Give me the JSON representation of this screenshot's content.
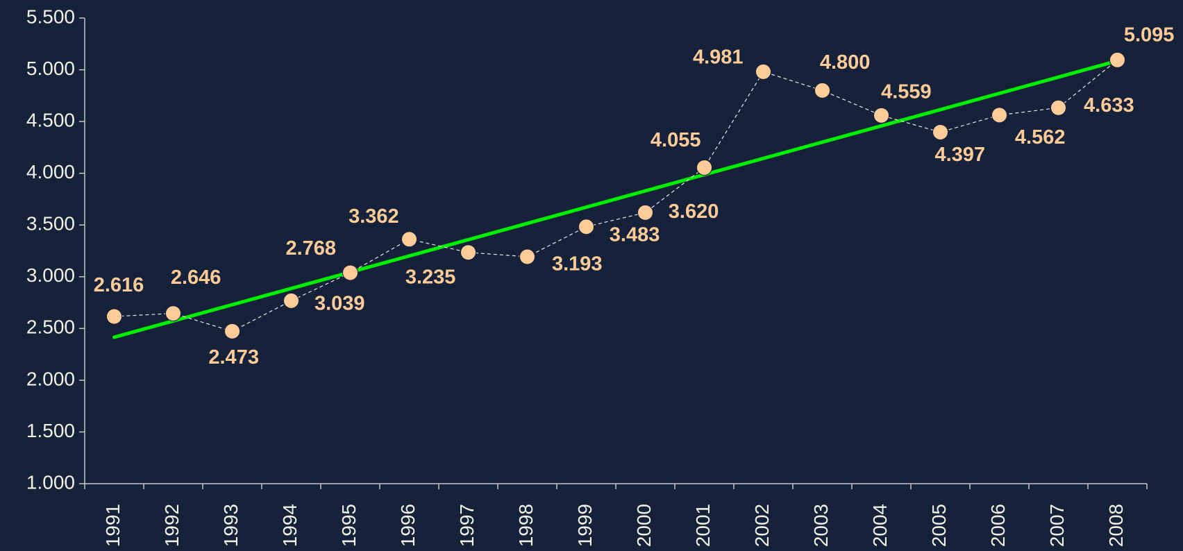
{
  "chart_data": {
    "type": "line",
    "categories": [
      "1991",
      "1992",
      "1993",
      "1994",
      "1995",
      "1996",
      "1997",
      "1998",
      "1999",
      "2000",
      "2001",
      "2002",
      "2003",
      "2004",
      "2005",
      "2006",
      "2007",
      "2008"
    ],
    "series": [
      {
        "color": "#ffcc99",
        "values": [
          2616,
          2646,
          2473,
          2768,
          3039,
          3362,
          3235,
          3193,
          3483,
          3620,
          4055,
          4981,
          4800,
          4559,
          4397,
          4562,
          4633,
          5095
        ],
        "value_labels": [
          "2.616",
          "2.646",
          "2.473",
          "2.768",
          "3.039",
          "3.362",
          "3.235",
          "3.193",
          "3.483",
          "3.620",
          "4.055",
          "4.981",
          "4.800",
          "4.559",
          "4.397",
          "4.562",
          "4.633",
          "5.095"
        ]
      }
    ],
    "trendline": {
      "type": "linear",
      "color": "#00ee00"
    },
    "ylim": [
      1000,
      5500
    ],
    "yticks": [
      {
        "value": 1000,
        "label": "1.000"
      },
      {
        "value": 1500,
        "label": "1.500"
      },
      {
        "value": 2000,
        "label": "2.000"
      },
      {
        "value": 2500,
        "label": "2.500"
      },
      {
        "value": 3000,
        "label": "3.000"
      },
      {
        "value": 3500,
        "label": "3.500"
      },
      {
        "value": 4000,
        "label": "4.000"
      },
      {
        "value": 4500,
        "label": "4.500"
      },
      {
        "value": 5000,
        "label": "5.000"
      },
      {
        "value": 5500,
        "label": "5.500"
      }
    ],
    "grid": false
  }
}
